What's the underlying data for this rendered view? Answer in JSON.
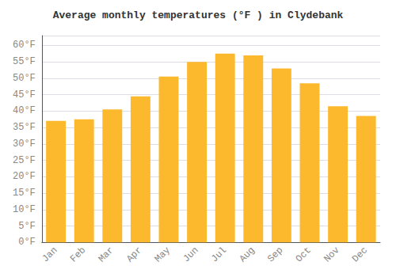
{
  "chart_data": {
    "type": "bar",
    "title": "Average monthly temperatures (°F ) in Clydebank",
    "categories": [
      "Jan",
      "Feb",
      "Mar",
      "Apr",
      "May",
      "Jun",
      "Jul",
      "Aug",
      "Sep",
      "Oct",
      "Nov",
      "Dec"
    ],
    "values": [
      37,
      37.5,
      40.5,
      44.5,
      50.5,
      55,
      57.5,
      57,
      53,
      48.5,
      41.5,
      38.5
    ],
    "color": "#FDB92E",
    "ylim": [
      0,
      63
    ],
    "yticks": [
      {
        "value": 0,
        "label": "0°F"
      },
      {
        "value": 5,
        "label": "5°F"
      },
      {
        "value": 10,
        "label": "10°F"
      },
      {
        "value": 15,
        "label": "15°F"
      },
      {
        "value": 20,
        "label": "20°F"
      },
      {
        "value": 25,
        "label": "25°F"
      },
      {
        "value": 30,
        "label": "30°F"
      },
      {
        "value": 35,
        "label": "35°F"
      },
      {
        "value": 40,
        "label": "40°F"
      },
      {
        "value": 45,
        "label": "45°F"
      },
      {
        "value": 50,
        "label": "50°F"
      },
      {
        "value": 55,
        "label": "55°F"
      },
      {
        "value": 60,
        "label": "60°F"
      }
    ],
    "grid": true
  }
}
